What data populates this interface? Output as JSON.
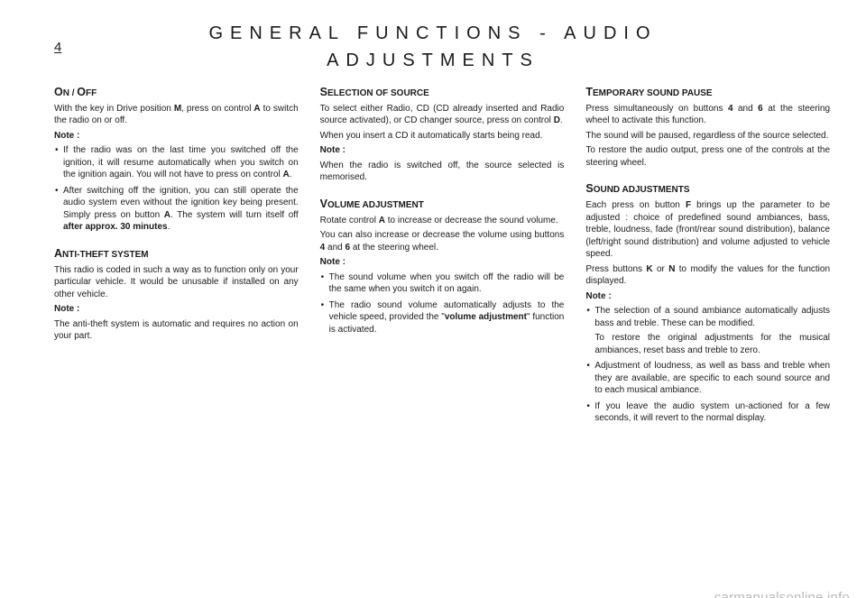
{
  "page_number": "4",
  "title_line1": "GENERAL FUNCTIONS - AUDIO",
  "title_line2": "ADJUSTMENTS",
  "watermark": "carmanualsonline.info",
  "col1": {
    "s1": {
      "title_html": "O<span style='font-size:10px'>N</span> / O<span style='font-size:10px'>FF</span>",
      "p1a": "With the key in Drive position ",
      "p1m": "M",
      "p1b": ", press on control ",
      "p1A": "A",
      "p1c": " to switch the radio on or off.",
      "note": "Note :",
      "b1a": "If the radio was on the last time you switched off the ignition, it will resume automatically when you switch on the ignition again. You will not have to press on control ",
      "b1A": "A",
      "b1b": ".",
      "b2a": "After switching off the ignition, you can still operate the audio system even without the ignition key being present. Simply press on button ",
      "b2A": "A",
      "b2b": ". The system will turn itself off ",
      "b2c": "after approx. 30 minutes",
      "b2d": "."
    },
    "s2": {
      "title": "ANTI-THEFT SYSTEM",
      "p1": "This radio is coded in such a way as to function only on your particular vehicle. It would be unusable if installed on any other vehicle.",
      "note": "Note :",
      "p2": "The anti-theft system is automatic and requires no action on your part."
    }
  },
  "col2": {
    "s1": {
      "title": "SELECTION OF SOURCE",
      "p1a": "To select either Radio, CD (CD already inserted and Radio source activated), or CD changer source, press on control ",
      "p1D": "D",
      "p1b": ".",
      "p2": "When you insert a CD it automatically starts being read.",
      "note": "Note :",
      "p3": "When the radio is switched off, the source selected is memorised."
    },
    "s2": {
      "title": "VOLUME ADJUSTMENT",
      "p1a": "Rotate control ",
      "p1A": "A",
      "p1b": " to increase or decrease the sound volume.",
      "p2a": "You can also increase or decrease the volume using buttons ",
      "p24": "4",
      "p2b": " and ",
      "p26": "6",
      "p2c": " at the steering wheel.",
      "note": "Note :",
      "b1": "The sound volume when you switch off the radio will be the same when you switch it on again.",
      "b2a": "The radio sound volume automatically adjusts to the vehicle speed, provided the \"",
      "b2b": "volume adjustment",
      "b2c": "\" function is activated."
    }
  },
  "col3": {
    "s1": {
      "title": "TEMPORARY SOUND PAUSE",
      "p1a": "Press simultaneously on buttons ",
      "p14": "4",
      "p1b": " and ",
      "p16": "6",
      "p1c": " at the steering wheel to activate this function.",
      "p2": "The sound will be paused, regardless of the source selected.",
      "p3": "To restore the audio output, press one of the controls at the steering wheel."
    },
    "s2": {
      "title": "SOUND ADJUSTMENTS",
      "p1a": "Each press on button ",
      "p1F": "F",
      "p1b": " brings up the parameter to be adjusted : choice of predefined sound ambiances, bass, treble, loudness, fade (front/rear sound distribution), balance (left/right sound distribution) and volume adjusted to vehicle speed.",
      "p2a": "Press buttons ",
      "p2K": "K",
      "p2b": " or ",
      "p2N": "N",
      "p2c": " to modify the values for the function displayed.",
      "note": "Note :",
      "b1": "The selection of a sound ambiance automatically adjusts bass and treble. These can be modified.",
      "b1b": "To restore the original adjustments for the musical ambiances, reset bass and treble to zero.",
      "b2": "Adjustment of loudness, as well as bass and treble when they are available, are specific to each sound source and to each musical ambiance.",
      "b3": "If you leave the audio system un-actioned for a few seconds, it will revert to the normal display."
    }
  }
}
